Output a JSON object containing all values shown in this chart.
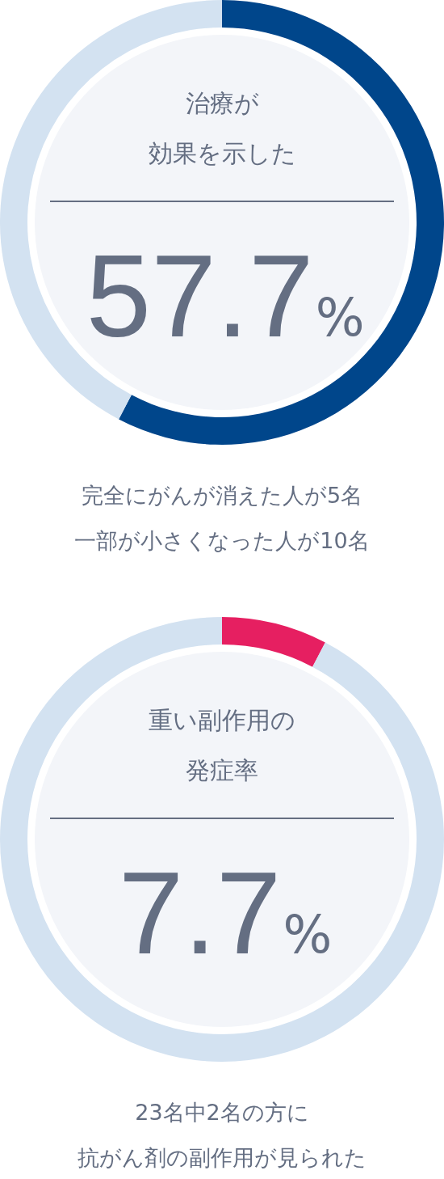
{
  "chart_data": [
    {
      "type": "donut",
      "title": "治療が",
      "subtitle": "効果を示した",
      "categories": [
        null,
        null
      ],
      "values": [
        57.7,
        42.3
      ],
      "colors": [
        "#00468b",
        "#d3e2f1"
      ],
      "annotations": [
        "57.7%",
        "完全にがんが消えた人が5名",
        "一部が小さくなった人が10名"
      ]
    },
    {
      "type": "donut",
      "title": "重い副作用の",
      "subtitle": "発症率",
      "categories": [
        null,
        null
      ],
      "values": [
        7.7,
        92.3
      ],
      "colors": [
        "#e61f61",
        "#d3e2f1"
      ],
      "annotations": [
        "7.7%",
        "23名中2名の方に",
        "抗がん剤の副作用が見られた"
      ]
    }
  ]
}
